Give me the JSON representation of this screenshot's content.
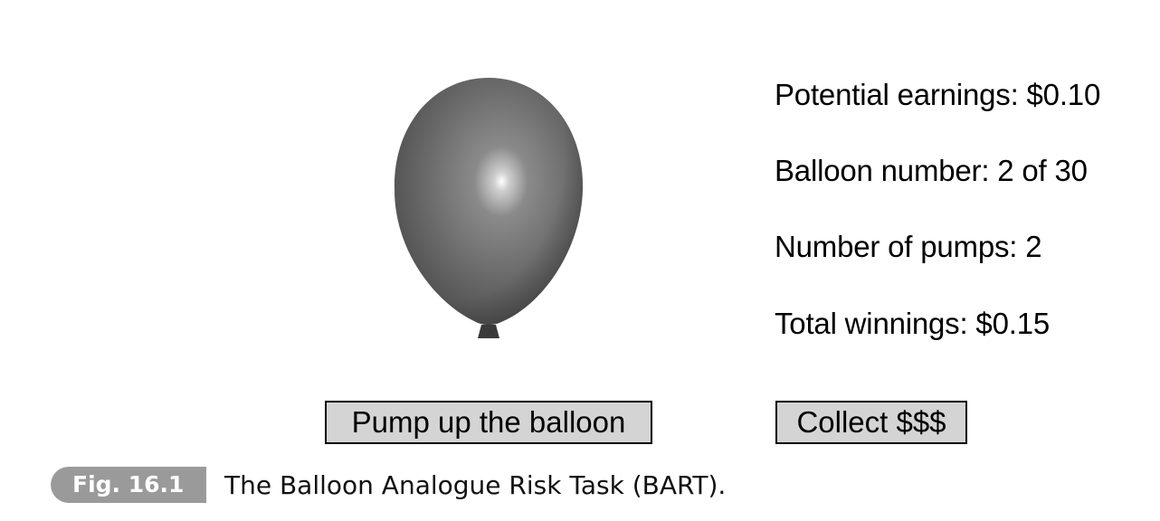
{
  "stats": {
    "potential_earnings": "Potential earnings: $0.10",
    "balloon_number": "Balloon number: 2 of 30",
    "number_of_pumps": "Number of pumps: 2",
    "total_winnings": "Total winnings: $0.15"
  },
  "buttons": {
    "pump_label": "Pump up the balloon",
    "collect_label": "Collect $$$"
  },
  "caption": {
    "figure_label": "Fig. 16.1",
    "text": "The Balloon Analogue Risk Task (BART)."
  },
  "colors": {
    "balloon": "#6e6e6e",
    "button_background": "#d4d4d4",
    "figure_label_background": "#9a9a9a"
  },
  "icons": {
    "balloon": "balloon-icon"
  }
}
